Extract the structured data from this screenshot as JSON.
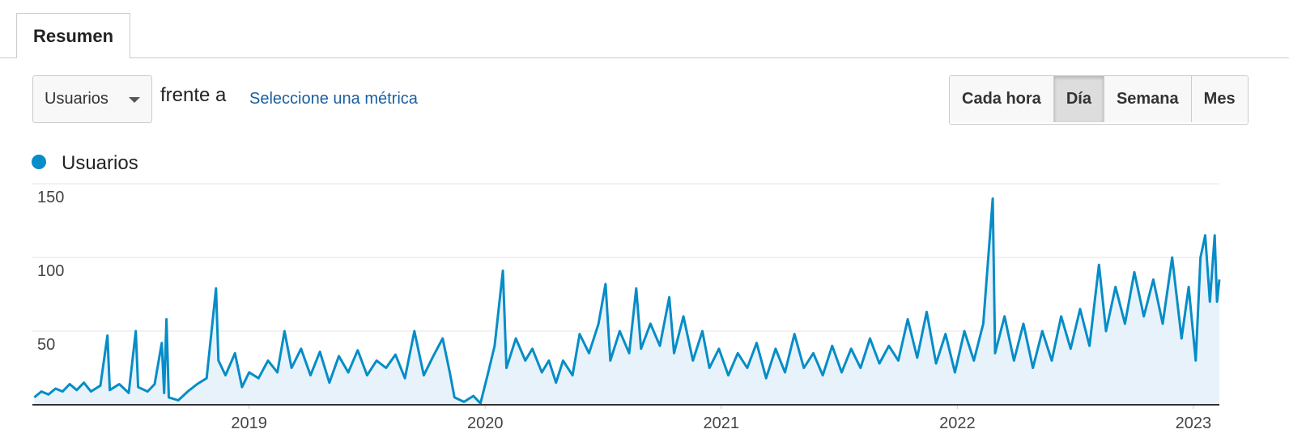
{
  "tab": "Resumen",
  "metric_selector": "Usuarios",
  "versus": "frente a",
  "compare_link": "Seleccione una métrica",
  "granularity_buttons": [
    "Cada hora",
    "Día",
    "Semana",
    "Mes"
  ],
  "chart_data": {
    "type": "line",
    "x": [
      2018.09,
      2018.12,
      2018.15,
      2018.18,
      2018.21,
      2018.24,
      2018.27,
      2018.3,
      2018.33,
      2018.37,
      2018.4,
      2018.41,
      2018.45,
      2018.49,
      2018.52,
      2018.53,
      2018.57,
      2018.6,
      2018.63,
      2018.64,
      2018.65,
      2018.66,
      2018.7,
      2018.74,
      2018.78,
      2018.82,
      2018.86,
      2018.87,
      2018.9,
      2018.94,
      2018.97,
      2019.0,
      2019.04,
      2019.08,
      2019.12,
      2019.15,
      2019.18,
      2019.22,
      2019.26,
      2019.3,
      2019.34,
      2019.38,
      2019.42,
      2019.46,
      2019.5,
      2019.54,
      2019.58,
      2019.62,
      2019.66,
      2019.7,
      2019.74,
      2019.78,
      2019.82,
      2019.85,
      2019.87,
      2019.91,
      2019.95,
      2019.98,
      2020.01,
      2020.04,
      2020.075,
      2020.09,
      2020.13,
      2020.17,
      2020.2,
      2020.24,
      2020.27,
      2020.3,
      2020.33,
      2020.37,
      2020.4,
      2020.44,
      2020.48,
      2020.51,
      2020.53,
      2020.57,
      2020.61,
      2020.64,
      2020.66,
      2020.7,
      2020.74,
      2020.78,
      2020.8,
      2020.84,
      2020.88,
      2020.92,
      2020.95,
      2020.99,
      2021.03,
      2021.07,
      2021.11,
      2021.15,
      2021.19,
      2021.23,
      2021.27,
      2021.31,
      2021.35,
      2021.39,
      2021.43,
      2021.47,
      2021.51,
      2021.55,
      2021.59,
      2021.63,
      2021.67,
      2021.71,
      2021.75,
      2021.79,
      2021.83,
      2021.87,
      2021.91,
      2021.95,
      2021.99,
      2022.03,
      2022.07,
      2022.11,
      2022.15,
      2022.16,
      2022.2,
      2022.24,
      2022.28,
      2022.32,
      2022.36,
      2022.4,
      2022.44,
      2022.48,
      2022.52,
      2022.56,
      2022.6,
      2022.63,
      2022.67,
      2022.71,
      2022.75,
      2022.79,
      2022.83,
      2022.87,
      2022.91,
      2022.95,
      2022.98,
      2023.01,
      2023.03,
      2023.05,
      2023.07,
      2023.09,
      2023.1,
      2023.11
    ],
    "series": [
      {
        "name": "Usuarios",
        "color": "#058dc7",
        "values": [
          5,
          9,
          7,
          11,
          9,
          14,
          10,
          15,
          9,
          13,
          47,
          10,
          14,
          8,
          50,
          12,
          9,
          14,
          42,
          8,
          58,
          5,
          3,
          9,
          14,
          18,
          79,
          30,
          20,
          35,
          12,
          22,
          18,
          30,
          22,
          50,
          25,
          38,
          20,
          36,
          15,
          33,
          22,
          37,
          20,
          30,
          25,
          34,
          18,
          50,
          20,
          33,
          45,
          22,
          5,
          2,
          6,
          1,
          20,
          40,
          91,
          25,
          45,
          30,
          38,
          22,
          30,
          15,
          30,
          20,
          48,
          35,
          55,
          82,
          30,
          50,
          35,
          79,
          38,
          55,
          40,
          73,
          35,
          60,
          30,
          50,
          25,
          38,
          20,
          35,
          25,
          42,
          18,
          38,
          22,
          48,
          25,
          35,
          20,
          40,
          22,
          38,
          25,
          45,
          28,
          40,
          30,
          58,
          32,
          63,
          28,
          48,
          22,
          50,
          30,
          55,
          140,
          35,
          60,
          30,
          55,
          25,
          50,
          30,
          60,
          38,
          65,
          40,
          95,
          50,
          80,
          55,
          90,
          60,
          85,
          55,
          100,
          45,
          80,
          30,
          100,
          115,
          70,
          115,
          70,
          85
        ]
      }
    ],
    "xlim": [
      2018.082,
      2023.11
    ],
    "ylim": [
      0,
      150
    ],
    "xticks": [
      2019,
      2020,
      2021,
      2022,
      2023
    ],
    "yticks": [
      50,
      100,
      150
    ],
    "grid": true,
    "area_color": "#e8f2fa"
  }
}
